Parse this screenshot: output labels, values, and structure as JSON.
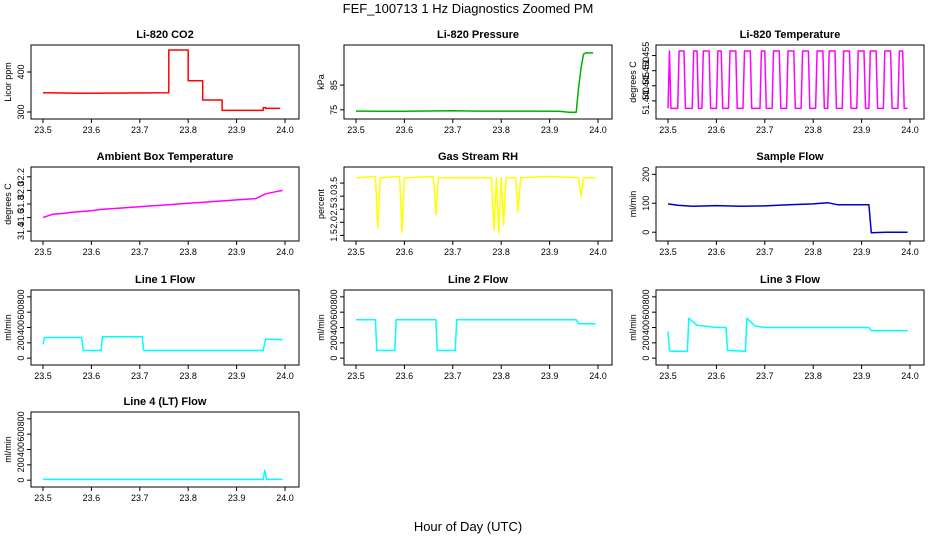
{
  "figure": {
    "title": "FEF_100713  1 Hz Diagnostics Zoomed PM",
    "xlabel": "Hour of Day (UTC)"
  },
  "chart_data": [
    {
      "type": "line",
      "title": "Li-820 CO2",
      "ylabel": "Licor ppm",
      "color": "#ff0000",
      "xlim": [
        23.5,
        24.0
      ],
      "xticks": [
        "23.5",
        "23.6",
        "23.7",
        "23.8",
        "23.9",
        "24.0"
      ],
      "ylim": [
        290,
        460
      ],
      "yticks": [
        "300",
        "400"
      ],
      "series": [
        {
          "x": [
            23.5,
            23.58,
            23.76,
            23.76,
            23.8,
            23.8,
            23.83,
            23.83,
            23.87,
            23.87,
            23.955,
            23.955,
            23.96,
            23.96,
            23.99
          ],
          "y": [
            348,
            347,
            348,
            455,
            455,
            378,
            378,
            330,
            330,
            304,
            304,
            311,
            311,
            309,
            309
          ]
        }
      ]
    },
    {
      "type": "line",
      "title": "Li-820 Pressure",
      "ylabel": "kPa",
      "color": "#00b000",
      "xlim": [
        23.5,
        24.0
      ],
      "xticks": [
        "23.5",
        "23.6",
        "23.7",
        "23.8",
        "23.9",
        "24.0"
      ],
      "ylim": [
        72.5,
        100
      ],
      "yticks": [
        "75",
        "85"
      ],
      "series": [
        {
          "x": [
            23.5,
            23.6,
            23.7,
            23.75,
            23.85,
            23.92,
            23.94,
            23.955,
            23.96,
            23.965,
            23.97,
            23.975,
            23.99
          ],
          "y": [
            74.5,
            74.4,
            74.6,
            74.5,
            74.5,
            74.4,
            74.0,
            74.0,
            84,
            92,
            97.5,
            98,
            98
          ]
        }
      ]
    },
    {
      "type": "line",
      "title": "Li-820 Temperature",
      "ylabel": "degrees C",
      "color": "#ff00ff",
      "xlim": [
        23.5,
        24.0
      ],
      "xticks": [
        "23.5",
        "23.6",
        "23.7",
        "23.8",
        "23.9",
        "24.0"
      ],
      "ylim": [
        51.435,
        51.4575
      ],
      "yticks": [
        "51.440",
        "51.445",
        "51.450",
        "51.455"
      ],
      "series": [
        {
          "x": [
            23.5,
            23.503,
            23.506,
            23.52,
            23.523,
            23.533,
            23.536,
            23.55,
            23.553,
            23.56,
            23.563,
            23.57,
            23.573,
            23.585,
            23.588,
            23.6,
            23.603,
            23.61,
            23.613,
            23.625,
            23.628,
            23.64,
            23.643,
            23.655,
            23.658,
            23.67,
            23.673,
            23.69,
            23.693,
            23.7,
            23.703,
            23.715,
            23.718,
            23.73,
            23.733,
            23.745,
            23.748,
            23.76,
            23.763,
            23.775,
            23.778,
            23.79,
            23.793,
            23.805,
            23.808,
            23.82,
            23.823,
            23.83,
            23.833,
            23.845,
            23.848,
            23.86,
            23.863,
            23.875,
            23.878,
            23.89,
            23.893,
            23.905,
            23.908,
            23.915,
            23.918,
            23.93,
            23.933,
            23.945,
            23.948,
            23.96,
            23.963,
            23.975,
            23.978,
            23.985,
            23.988,
            23.995
          ],
          "y": [
            51.4375,
            51.4565,
            51.4375,
            51.4375,
            51.4565,
            51.4565,
            51.4375,
            51.4375,
            51.4565,
            51.4565,
            51.4375,
            51.4375,
            51.4565,
            51.4565,
            51.4375,
            51.4375,
            51.4565,
            51.4565,
            51.4375,
            51.4375,
            51.4565,
            51.4565,
            51.4375,
            51.4375,
            51.4565,
            51.4565,
            51.4375,
            51.4375,
            51.4565,
            51.4565,
            51.4375,
            51.4375,
            51.4565,
            51.4565,
            51.4375,
            51.4375,
            51.4565,
            51.4565,
            51.4375,
            51.4375,
            51.4565,
            51.4565,
            51.4375,
            51.4375,
            51.4565,
            51.4565,
            51.4375,
            51.4375,
            51.4565,
            51.4565,
            51.4375,
            51.4375,
            51.4565,
            51.4565,
            51.4375,
            51.4375,
            51.4565,
            51.4565,
            51.4375,
            51.4375,
            51.4565,
            51.4565,
            51.4375,
            51.4375,
            51.4565,
            51.4565,
            51.4375,
            51.4375,
            51.4565,
            51.4565,
            51.4375,
            51.4375
          ]
        }
      ]
    },
    {
      "type": "line",
      "title": "Ambient Box Temperature",
      "ylabel": "degrees C",
      "color": "#ff00ff",
      "xlim": [
        23.5,
        24.0
      ],
      "xticks": [
        "23.5",
        "23.6",
        "23.7",
        "23.8",
        "23.9",
        "24.0"
      ],
      "ylim": [
        31.3,
        32.3
      ],
      "yticks": [
        "31.4",
        "31.6",
        "31.8",
        "32.0",
        "32.2"
      ],
      "series": [
        {
          "x": [
            23.5,
            23.52,
            23.54,
            23.56,
            23.58,
            23.6,
            23.62,
            23.64,
            23.66,
            23.68,
            23.7,
            23.72,
            23.74,
            23.76,
            23.78,
            23.8,
            23.82,
            23.84,
            23.86,
            23.88,
            23.9,
            23.92,
            23.94,
            23.96,
            23.98,
            23.995
          ],
          "y": [
            31.6,
            31.65,
            31.66,
            31.68,
            31.69,
            31.7,
            31.72,
            31.73,
            31.74,
            31.75,
            31.76,
            31.77,
            31.78,
            31.79,
            31.8,
            31.81,
            31.82,
            31.83,
            31.84,
            31.85,
            31.86,
            31.87,
            31.88,
            31.95,
            31.98,
            32.0
          ]
        }
      ]
    },
    {
      "type": "line",
      "title": "Gas Stream RH",
      "ylabel": "percent",
      "color": "#ffff00",
      "xlim": [
        23.5,
        24.0
      ],
      "xticks": [
        "23.5",
        "23.6",
        "23.7",
        "23.8",
        "23.9",
        "24.0"
      ],
      "ylim": [
        1.4,
        4.0
      ],
      "yticks": [
        "1.5",
        "2.0",
        "2.5",
        "3.0",
        "3.5"
      ],
      "series": [
        {
          "x": [
            23.5,
            23.54,
            23.545,
            23.55,
            23.59,
            23.595,
            23.6,
            23.66,
            23.665,
            23.67,
            23.78,
            23.785,
            23.79,
            23.795,
            23.8,
            23.805,
            23.81,
            23.83,
            23.835,
            23.84,
            23.9,
            23.96,
            23.965,
            23.97,
            23.995
          ],
          "y": [
            3.7,
            3.75,
            1.8,
            3.7,
            3.75,
            1.6,
            3.7,
            3.75,
            2.3,
            3.7,
            3.7,
            1.7,
            3.7,
            1.6,
            3.7,
            1.9,
            3.7,
            3.7,
            2.4,
            3.7,
            3.75,
            3.7,
            3.0,
            3.7,
            3.7
          ]
        }
      ]
    },
    {
      "type": "line",
      "title": "Sample Flow",
      "ylabel": "ml/min",
      "color": "#0000cc",
      "xlim": [
        23.5,
        24.0
      ],
      "xticks": [
        "23.5",
        "23.6",
        "23.7",
        "23.8",
        "23.9",
        "24.0"
      ],
      "ylim": [
        -20,
        215
      ],
      "yticks": [
        "0",
        "100",
        "200"
      ],
      "series": [
        {
          "x": [
            23.5,
            23.52,
            23.55,
            23.6,
            23.65,
            23.7,
            23.75,
            23.8,
            23.83,
            23.85,
            23.9,
            23.915,
            23.92,
            23.95,
            23.995
          ],
          "y": [
            98,
            93,
            90,
            92,
            90,
            91,
            95,
            98,
            102,
            95,
            95,
            95,
            -2,
            0,
            0
          ]
        }
      ]
    },
    {
      "type": "line",
      "title": "Line 1 Flow",
      "ylabel": "ml/min",
      "color": "#00ffff",
      "xlim": [
        23.5,
        24.0
      ],
      "xticks": [
        "23.5",
        "23.6",
        "23.7",
        "23.8",
        "23.9",
        "24.0"
      ],
      "ylim": [
        -50,
        850
      ],
      "yticks": [
        "0",
        "200",
        "400",
        "600",
        "800"
      ],
      "series": [
        {
          "x": [
            23.5,
            23.503,
            23.58,
            23.583,
            23.62,
            23.623,
            23.705,
            23.708,
            23.955,
            23.96,
            23.995
          ],
          "y": [
            180,
            270,
            270,
            100,
            100,
            280,
            280,
            100,
            100,
            250,
            240
          ]
        }
      ]
    },
    {
      "type": "line",
      "title": "Line 2 Flow",
      "ylabel": "ml/min",
      "color": "#00ffff",
      "xlim": [
        23.5,
        24.0
      ],
      "xticks": [
        "23.5",
        "23.6",
        "23.7",
        "23.8",
        "23.9",
        "24.0"
      ],
      "ylim": [
        -50,
        850
      ],
      "yticks": [
        "0",
        "200",
        "400",
        "600",
        "800"
      ],
      "series": [
        {
          "x": [
            23.5,
            23.54,
            23.543,
            23.58,
            23.583,
            23.665,
            23.668,
            23.705,
            23.708,
            23.8,
            23.9,
            23.955,
            23.96,
            23.995
          ],
          "y": [
            500,
            500,
            100,
            100,
            500,
            500,
            100,
            100,
            500,
            500,
            500,
            500,
            450,
            450
          ]
        }
      ]
    },
    {
      "type": "line",
      "title": "Line 3 Flow",
      "ylabel": "ml/min",
      "color": "#00ffff",
      "xlim": [
        23.5,
        24.0
      ],
      "xticks": [
        "23.5",
        "23.6",
        "23.7",
        "23.8",
        "23.9",
        "24.0"
      ],
      "ylim": [
        -50,
        850
      ],
      "yticks": [
        "0",
        "200",
        "400",
        "600",
        "800"
      ],
      "series": [
        {
          "x": [
            23.5,
            23.503,
            23.506,
            23.54,
            23.543,
            23.56,
            23.6,
            23.62,
            23.623,
            23.66,
            23.663,
            23.68,
            23.7,
            23.8,
            23.9,
            23.915,
            23.92,
            23.995
          ],
          "y": [
            350,
            100,
            90,
            90,
            520,
            430,
            400,
            400,
            100,
            90,
            520,
            420,
            400,
            400,
            400,
            400,
            360,
            360
          ]
        }
      ]
    },
    {
      "type": "line",
      "title": "Line 4 (LT) Flow",
      "ylabel": "ml/min",
      "color": "#00ffff",
      "xlim": [
        23.5,
        24.0
      ],
      "xticks": [
        "23.5",
        "23.6",
        "23.7",
        "23.8",
        "23.9",
        "24.0"
      ],
      "ylim": [
        -50,
        850
      ],
      "yticks": [
        "0",
        "200",
        "400",
        "600",
        "800"
      ],
      "series": [
        {
          "x": [
            23.5,
            23.6,
            23.7,
            23.8,
            23.9,
            23.955,
            23.958,
            23.962,
            23.995
          ],
          "y": [
            10,
            10,
            10,
            10,
            10,
            10,
            130,
            10,
            10
          ]
        }
      ]
    }
  ]
}
